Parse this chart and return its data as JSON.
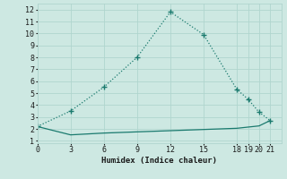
{
  "line1_x": [
    0,
    3,
    6,
    9,
    12,
    15,
    18,
    19,
    20,
    21
  ],
  "line1_y": [
    2.2,
    3.5,
    5.5,
    8.0,
    11.8,
    9.9,
    5.3,
    4.5,
    3.4,
    2.7
  ],
  "line2_x": [
    0,
    3,
    6,
    9,
    12,
    15,
    18,
    19,
    20,
    21
  ],
  "line2_y": [
    2.2,
    1.5,
    1.65,
    1.75,
    1.85,
    1.95,
    2.05,
    2.15,
    2.25,
    2.7
  ],
  "line_color": "#1a7a6e",
  "bg_color": "#cde8e2",
  "grid_color": "#b0d5ce",
  "xlabel": "Humidex (Indice chaleur)",
  "xticks": [
    0,
    3,
    6,
    9,
    12,
    15,
    18,
    19,
    20,
    21
  ],
  "yticks": [
    1,
    2,
    3,
    4,
    5,
    6,
    7,
    8,
    9,
    10,
    11,
    12
  ],
  "xlim": [
    0,
    22
  ],
  "ylim": [
    0.8,
    12.5
  ]
}
